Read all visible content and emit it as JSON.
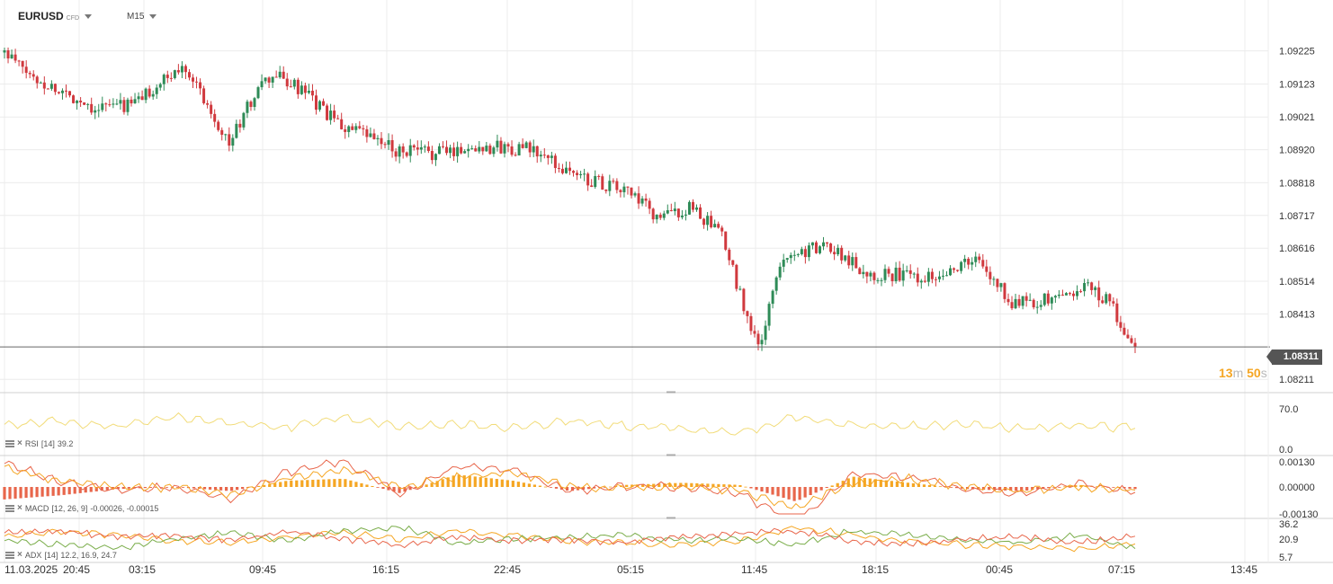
{
  "header": {
    "symbol": "EURUSD",
    "symbol_sub": "CFD",
    "timeframe": "M15"
  },
  "countdown": {
    "minutes": "13",
    "minutes_unit": "m",
    "seconds": "50",
    "seconds_unit": "s"
  },
  "price_axis_labels": [
    "1.09225",
    "1.09123",
    "1.09021",
    "1.08920",
    "1.08818",
    "1.08717",
    "1.08616",
    "1.08514",
    "1.08413",
    "1.08211"
  ],
  "current_price": "1.08311",
  "time_axis_labels": [
    "11.03.2025",
    "20:45",
    "03:15",
    "09:45",
    "16:15",
    "22:45",
    "05:15",
    "11:45",
    "18:15",
    "00:45",
    "07:15",
    "13:45"
  ],
  "indicators": {
    "rsi": {
      "label": "RSI",
      "params": "[14]",
      "value": "39.2",
      "axis": [
        "70.0",
        "0.0"
      ]
    },
    "macd": {
      "label": "MACD",
      "params": "[12, 26, 9]",
      "value": "-0.00026, -0.00015",
      "axis": [
        "0.00130",
        "0.00000",
        "-0.00130"
      ]
    },
    "adx": {
      "label": "ADX",
      "params": "[14]",
      "value": "12.2, 16.9, 24.7",
      "axis": [
        "36.2",
        "20.9",
        "5.7"
      ]
    }
  },
  "colors": {
    "up": "#2e8b57",
    "down": "#d0393e",
    "grid": "#ececec",
    "rsi": "#f2dc7a",
    "macd_hist_pos": "#f5a623",
    "macd_hist_neg": "#e8664b",
    "macd_line": "#e8664b",
    "signal_line": "#f5a623",
    "adx_line": "#f5a623",
    "di_plus": "#7aad4a",
    "di_minus": "#e8664b"
  },
  "chart_data": [
    {
      "type": "candlestick",
      "title": "EURUSD",
      "timeframe": "M15",
      "ylim": [
        1.0817,
        1.0936
      ],
      "y_ticks": [
        1.09225,
        1.09123,
        1.09021,
        1.0892,
        1.08818,
        1.08717,
        1.08616,
        1.08514,
        1.08413,
        1.08211
      ],
      "last_price": 1.08311,
      "grid": true,
      "close_path_approx": [
        [
          0,
          1.0922
        ],
        [
          8,
          1.0914
        ],
        [
          25,
          1.0905
        ],
        [
          35,
          1.0906
        ],
        [
          50,
          1.0918
        ],
        [
          62,
          1.0894
        ],
        [
          70,
          1.0911
        ],
        [
          75,
          1.0915
        ],
        [
          82,
          1.091
        ],
        [
          92,
          1.09
        ],
        [
          108,
          1.0892
        ],
        [
          118,
          1.0891
        ],
        [
          132,
          1.0893
        ],
        [
          145,
          1.0892
        ],
        [
          158,
          1.0884
        ],
        [
          172,
          1.0879
        ],
        [
          180,
          1.0871
        ],
        [
          190,
          1.0874
        ],
        [
          198,
          1.0865
        ],
        [
          208,
          1.083
        ],
        [
          215,
          1.086
        ],
        [
          228,
          1.0862
        ],
        [
          238,
          1.0854
        ],
        [
          255,
          1.0853
        ],
        [
          268,
          1.0858
        ],
        [
          278,
          1.0845
        ],
        [
          290,
          1.0846
        ],
        [
          298,
          1.085
        ],
        [
          305,
          1.0845
        ],
        [
          311,
          1.0831
        ]
      ]
    },
    {
      "type": "line",
      "title": "RSI [14]",
      "last_value": 39.2,
      "axis_ticks": [
        70.0,
        0.0
      ],
      "series": [
        {
          "name": "RSI",
          "values": [
            44,
            52,
            40,
            60,
            48,
            40,
            58,
            42,
            47,
            40,
            52,
            44,
            38,
            30,
            60,
            44,
            42,
            46,
            38,
            45,
            39
          ]
        }
      ]
    },
    {
      "type": "bar",
      "title": "MACD [12, 26, 9]",
      "last_values": [
        -0.00026,
        -0.00015
      ],
      "axis_ticks": [
        0.0013,
        0.0,
        -0.0013
      ],
      "series": [
        {
          "name": "Histogram",
          "values": [
            -0.0006,
            -0.0004,
            -0.0001,
            0.0,
            -0.0002,
            0.0003,
            0.0004,
            -0.0003,
            0.0006,
            0.0003,
            -0.0002,
            0.0001,
            0.0002,
            0.0001,
            -0.0007,
            0.0005,
            0.0002,
            -0.0001,
            -0.0002,
            0.0001,
            -0.0001
          ]
        },
        {
          "name": "MACD",
          "values": [
            0.0012,
            0.0002,
            -0.0002,
            0.0,
            -0.0006,
            0.0007,
            0.0013,
            -0.0004,
            0.001,
            0.0008,
            -0.0002,
            0.0,
            0.0,
            -0.0003,
            -0.0018,
            0.0006,
            0.0005,
            -0.0001,
            -0.0003,
            0.0002,
            -0.00026
          ]
        },
        {
          "name": "Signal",
          "values": [
            0.0009,
            0.0003,
            0.0,
            0.0,
            -0.0004,
            0.0004,
            0.0009,
            0.0,
            0.0005,
            0.0007,
            0.0,
            0.0,
            0.0,
            -0.0002,
            -0.001,
            0.0002,
            0.0004,
            0.0,
            -0.0002,
            0.0,
            -0.00015
          ]
        }
      ]
    },
    {
      "type": "line",
      "title": "ADX [14]",
      "last_values": [
        12.2,
        16.9,
        24.7
      ],
      "axis_ticks": [
        36.2,
        20.9,
        5.7
      ],
      "series": [
        {
          "name": "ADX",
          "values": [
            24,
            30,
            26,
            20,
            18,
            24,
            28,
            22,
            30,
            26,
            20,
            18,
            16,
            20,
            34,
            26,
            20,
            16,
            14,
            12,
            16.9
          ]
        },
        {
          "name": "+DI",
          "values": [
            20,
            16,
            12,
            22,
            28,
            20,
            30,
            34,
            18,
            22,
            24,
            26,
            20,
            22,
            16,
            30,
            26,
            20,
            18,
            26,
            12.2
          ]
        },
        {
          "name": "-DI",
          "values": [
            28,
            30,
            24,
            26,
            20,
            30,
            22,
            16,
            24,
            20,
            22,
            18,
            24,
            28,
            30,
            20,
            16,
            22,
            24,
            18,
            24.7
          ]
        }
      ]
    }
  ]
}
